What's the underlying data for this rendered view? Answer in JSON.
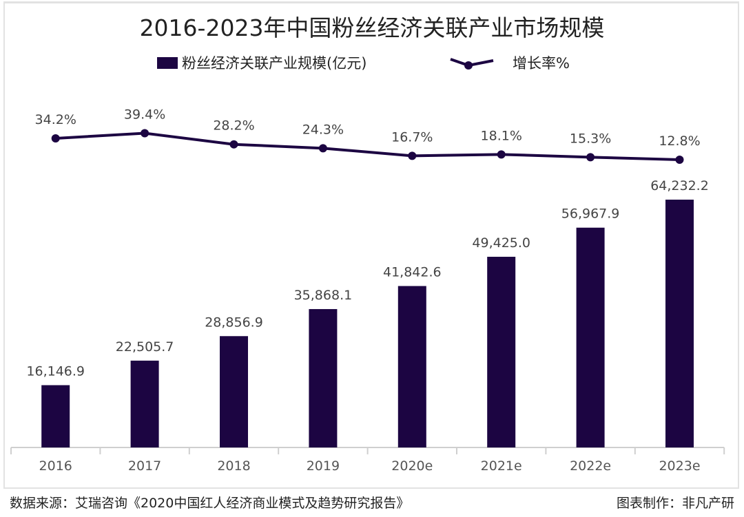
{
  "chart_data": {
    "type": "bar+line",
    "title": "2016-2023年中国粉丝经济关联产业市场规模",
    "categories": [
      "2016",
      "2017",
      "2018",
      "2019",
      "2020e",
      "2021e",
      "2022e",
      "2023e"
    ],
    "series": [
      {
        "name": "粉丝经济关联产业规模(亿元)",
        "type": "bar",
        "values": [
          16146.9,
          22505.7,
          28856.9,
          35868.1,
          41842.6,
          49425.0,
          56967.9,
          64232.2
        ],
        "labels": [
          "16,146.9",
          "22,505.7",
          "28,856.9",
          "35,868.1",
          "41,842.6",
          "49,425.0",
          "56,967.9",
          "64,232.2"
        ],
        "color": "#1c0542"
      },
      {
        "name": "增长率%",
        "type": "line",
        "values": [
          34.2,
          39.4,
          28.2,
          24.3,
          16.7,
          18.1,
          15.3,
          12.8
        ],
        "labels": [
          "34.2%",
          "39.4%",
          "28.2%",
          "24.3%",
          "16.7%",
          "18.1%",
          "15.3%",
          "12.8%"
        ],
        "color": "#1c0542"
      }
    ],
    "legend_position": "top",
    "grid": false
  },
  "footer": {
    "source": "数据来源：艾瑞咨询《2020中国红人经济商业模式及趋势研究报告》",
    "credit": "图表制作：非凡产研"
  }
}
